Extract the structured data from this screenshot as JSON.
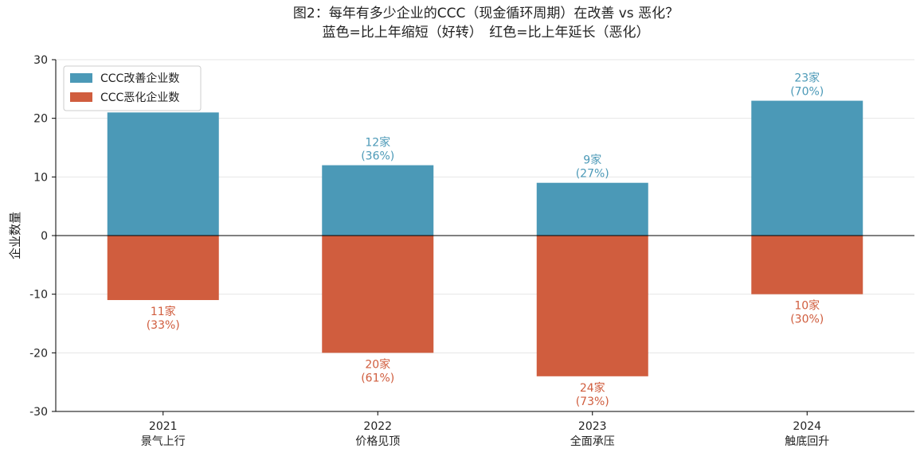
{
  "chart_data": {
    "type": "bar",
    "title": "图2：每年有多少企业的CCC（现金循环周期）在改善 vs 恶化？",
    "subtitle": "蓝色=比上年缩短（好转）　红色=比上年延长（恶化）",
    "y_label": "企业数量",
    "categories": [
      "2021",
      "2022",
      "2023",
      "2024"
    ],
    "category_notes": [
      "景气上行",
      "价格见顶",
      "全面承压",
      "触底回升"
    ],
    "series": [
      {
        "name": "CCC改善企业数",
        "color": "#4b99b7",
        "values": [
          21,
          12,
          9,
          23
        ],
        "value_labels": [
          null,
          "12家",
          "9家",
          "23家"
        ],
        "share_labels": [
          null,
          "(36%)",
          "(27%)",
          "(70%)"
        ]
      },
      {
        "name": "CCC恶化企业数",
        "color": "#d05d3e",
        "values": [
          -11,
          -20,
          -24,
          -10
        ],
        "value_labels": [
          "11家",
          "20家",
          "24家",
          "10家"
        ],
        "share_labels": [
          "(33%)",
          "(61%)",
          "(73%)",
          "(30%)"
        ]
      }
    ],
    "ylim": [
      -30,
      30
    ],
    "yticks": [
      -30,
      -20,
      -10,
      0,
      10,
      20,
      30
    ],
    "grid": true,
    "legend": "upper-left"
  }
}
